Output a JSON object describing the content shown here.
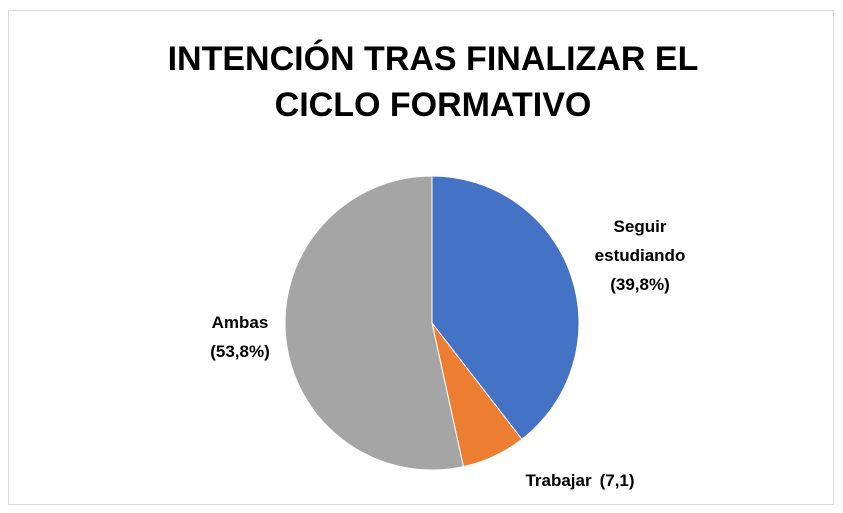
{
  "chart_data": {
    "type": "pie",
    "title": "INTENCIÓN TRAS FINALIZAR EL CICLO FORMATIVO",
    "categories": [
      "Seguir estudiando",
      "Trabajar",
      "Ambas"
    ],
    "values": [
      39.8,
      7.1,
      53.8
    ],
    "value_labels": [
      "(39,8%)",
      "(7,1)",
      "(53,8%)"
    ],
    "colors": [
      "#4472c4",
      "#ed7d31",
      "#a5a5a5"
    ]
  }
}
